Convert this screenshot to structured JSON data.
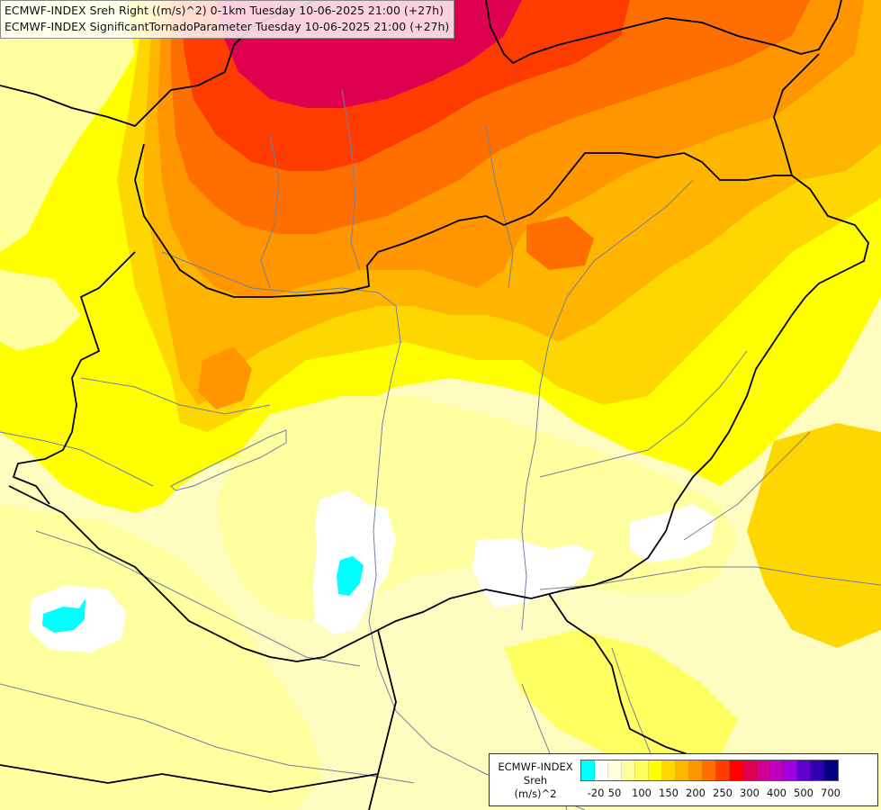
{
  "title": {
    "line1": "ECMWF-INDEX Sreh Right ((m/s)^2) 0-1km Tuesday 10-06-2025 21:00 (+27h)",
    "line2": "ECMWF-INDEX SignificantTornadoParameter Tuesday 10-06-2025 21:00 (+27h)"
  },
  "legend": {
    "source": "ECMWF-INDEX",
    "variable": "Sreh",
    "unit": "(m/s)^2",
    "colors": [
      "#00ffff",
      "#ffffff",
      "#ffffe0",
      "#ffffa0",
      "#ffff60",
      "#ffff00",
      "#ffd700",
      "#ffb400",
      "#ff9600",
      "#ff6e00",
      "#ff3c00",
      "#ff0000",
      "#e00050",
      "#d00090",
      "#c000c0",
      "#a000e0",
      "#6000d0",
      "#3000b0",
      "#000080"
    ],
    "ticks": [
      "-20",
      "50",
      "100",
      "150",
      "200",
      "250",
      "300",
      "400",
      "500",
      "700"
    ]
  },
  "field_colors": {
    "pale": "#fffcc0",
    "light_yellow": "#ffffa0",
    "yellow": "#ffff00",
    "gold": "#ffd700",
    "orange": "#ffb400",
    "dark_orange": "#ff9600",
    "red_orange": "#ff6e00",
    "red": "#ff3c00",
    "crimson": "#e00050",
    "white": "#ffffff",
    "cyan": "#00ffff",
    "border": "#000000",
    "river": "#7080a0"
  }
}
